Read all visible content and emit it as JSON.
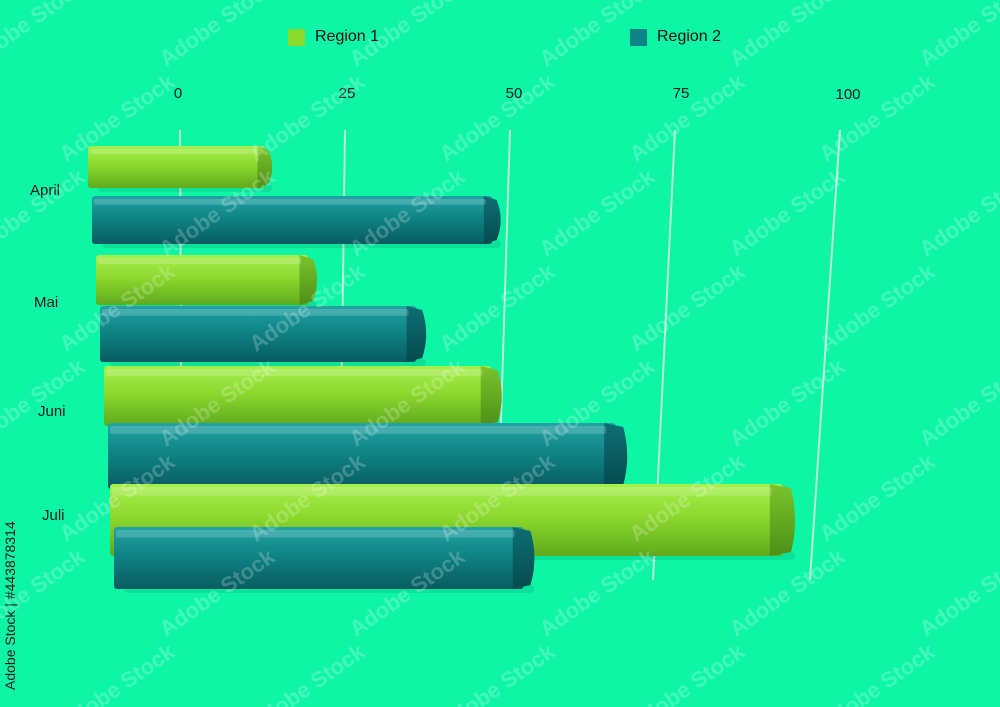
{
  "chart_data": {
    "type": "bar",
    "orientation": "horizontal",
    "style": "3d-cylinder-bars",
    "categories": [
      "April",
      "Mai",
      "Juni",
      "Juli"
    ],
    "series": [
      {
        "name": "Region 1",
        "values": [
          14,
          21,
          50,
          97
        ],
        "color": "#8cd92e"
      },
      {
        "name": "Region 2",
        "values": [
          49,
          38,
          70,
          56
        ],
        "color": "#0f8486"
      }
    ],
    "x_ticks": [
      0,
      25,
      50,
      75,
      100
    ],
    "xlim": [
      0,
      100
    ],
    "grid": true,
    "legend_position": "top"
  },
  "legend": {
    "items": [
      {
        "label": "Region 1",
        "color": "#8cd92e"
      },
      {
        "label": "Region 2",
        "color": "#0f8486"
      }
    ]
  },
  "credit": "Adobe Stock | #443878314",
  "watermark": "Adobe Stock",
  "colors": {
    "background": "#0ef5a6"
  }
}
